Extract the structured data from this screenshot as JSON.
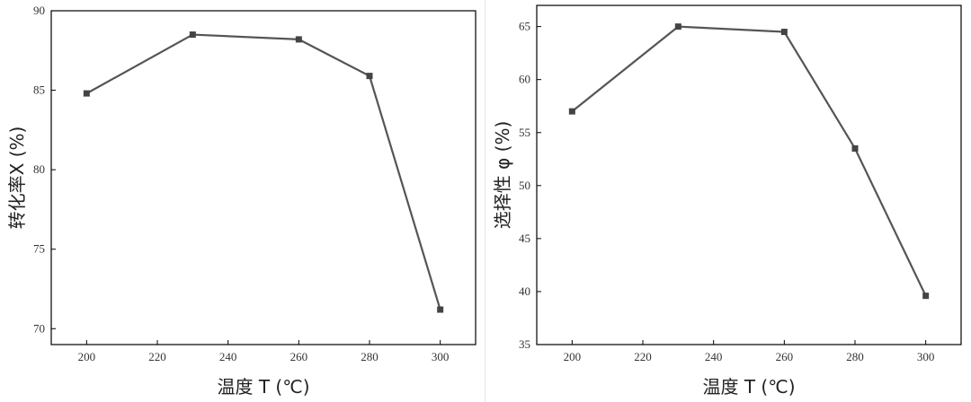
{
  "chart_data": [
    {
      "type": "line",
      "title": "",
      "xlabel": "温度 T (℃)",
      "ylabel": "转化率X (%)",
      "xlim": [
        190,
        310
      ],
      "ylim": [
        69,
        90
      ],
      "xticks": [
        200,
        220,
        240,
        260,
        280,
        300
      ],
      "yticks": [
        70,
        75,
        80,
        85,
        90
      ],
      "grid": false,
      "series": [
        {
          "x": [
            200,
            230,
            260,
            280,
            300
          ],
          "values": [
            84.8,
            88.5,
            88.2,
            85.9,
            71.2
          ],
          "color": "#555555"
        }
      ]
    },
    {
      "type": "line",
      "title": "",
      "xlabel": "温度 T (℃)",
      "ylabel": "选择性 φ (%)",
      "xlim": [
        190,
        310
      ],
      "ylim": [
        35,
        67
      ],
      "xticks": [
        200,
        220,
        240,
        260,
        280,
        300
      ],
      "yticks": [
        35,
        40,
        45,
        50,
        55,
        60,
        65
      ],
      "grid": false,
      "series": [
        {
          "x": [
            200,
            230,
            260,
            280,
            300
          ],
          "values": [
            57.0,
            65.0,
            64.5,
            53.5,
            39.6
          ],
          "color": "#555555"
        }
      ]
    }
  ]
}
